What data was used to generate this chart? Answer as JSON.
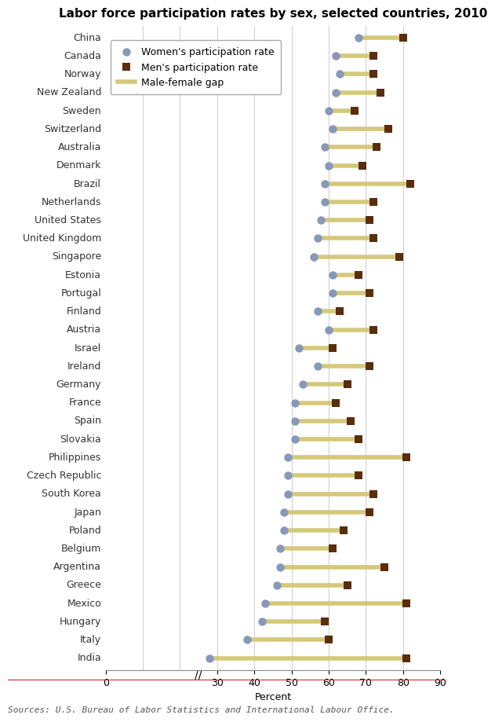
{
  "title": "Labor force participation rates by sex, selected countries, 2010",
  "xlabel": "Percent",
  "source": "Sources: U.S. Bureau of Labor Statistics and International Labour Office.",
  "countries": [
    "China",
    "Canada",
    "Norway",
    "New Zealand",
    "Sweden",
    "Switzerland",
    "Australia",
    "Denmark",
    "Brazil",
    "Netherlands",
    "United States",
    "United Kingdom",
    "Singapore",
    "Estonia",
    "Portugal",
    "Finland",
    "Austria",
    "Israel",
    "Ireland",
    "Germany",
    "France",
    "Spain",
    "Slovakia",
    "Philippines",
    "Czech Republic",
    "South Korea",
    "Japan",
    "Poland",
    "Belgium",
    "Argentina",
    "Greece",
    "Mexico",
    "Hungary",
    "Italy",
    "India"
  ],
  "women": [
    68,
    62,
    63,
    62,
    60,
    61,
    59,
    60,
    59,
    59,
    58,
    57,
    56,
    61,
    61,
    57,
    60,
    52,
    57,
    53,
    51,
    51,
    51,
    49,
    49,
    49,
    48,
    48,
    47,
    47,
    46,
    43,
    42,
    38,
    28
  ],
  "men": [
    80,
    72,
    72,
    74,
    67,
    76,
    73,
    69,
    82,
    72,
    71,
    72,
    79,
    68,
    71,
    63,
    72,
    61,
    71,
    65,
    62,
    66,
    68,
    81,
    68,
    72,
    71,
    64,
    61,
    75,
    65,
    81,
    59,
    60,
    81
  ],
  "women_color": "#8898b8",
  "men_color": "#5a2d0c",
  "gap_color": "#d4c97a",
  "title_fontsize": 11,
  "axis_label_fontsize": 9,
  "tick_fontsize": 9,
  "country_fontsize": 9,
  "legend_fontsize": 9
}
